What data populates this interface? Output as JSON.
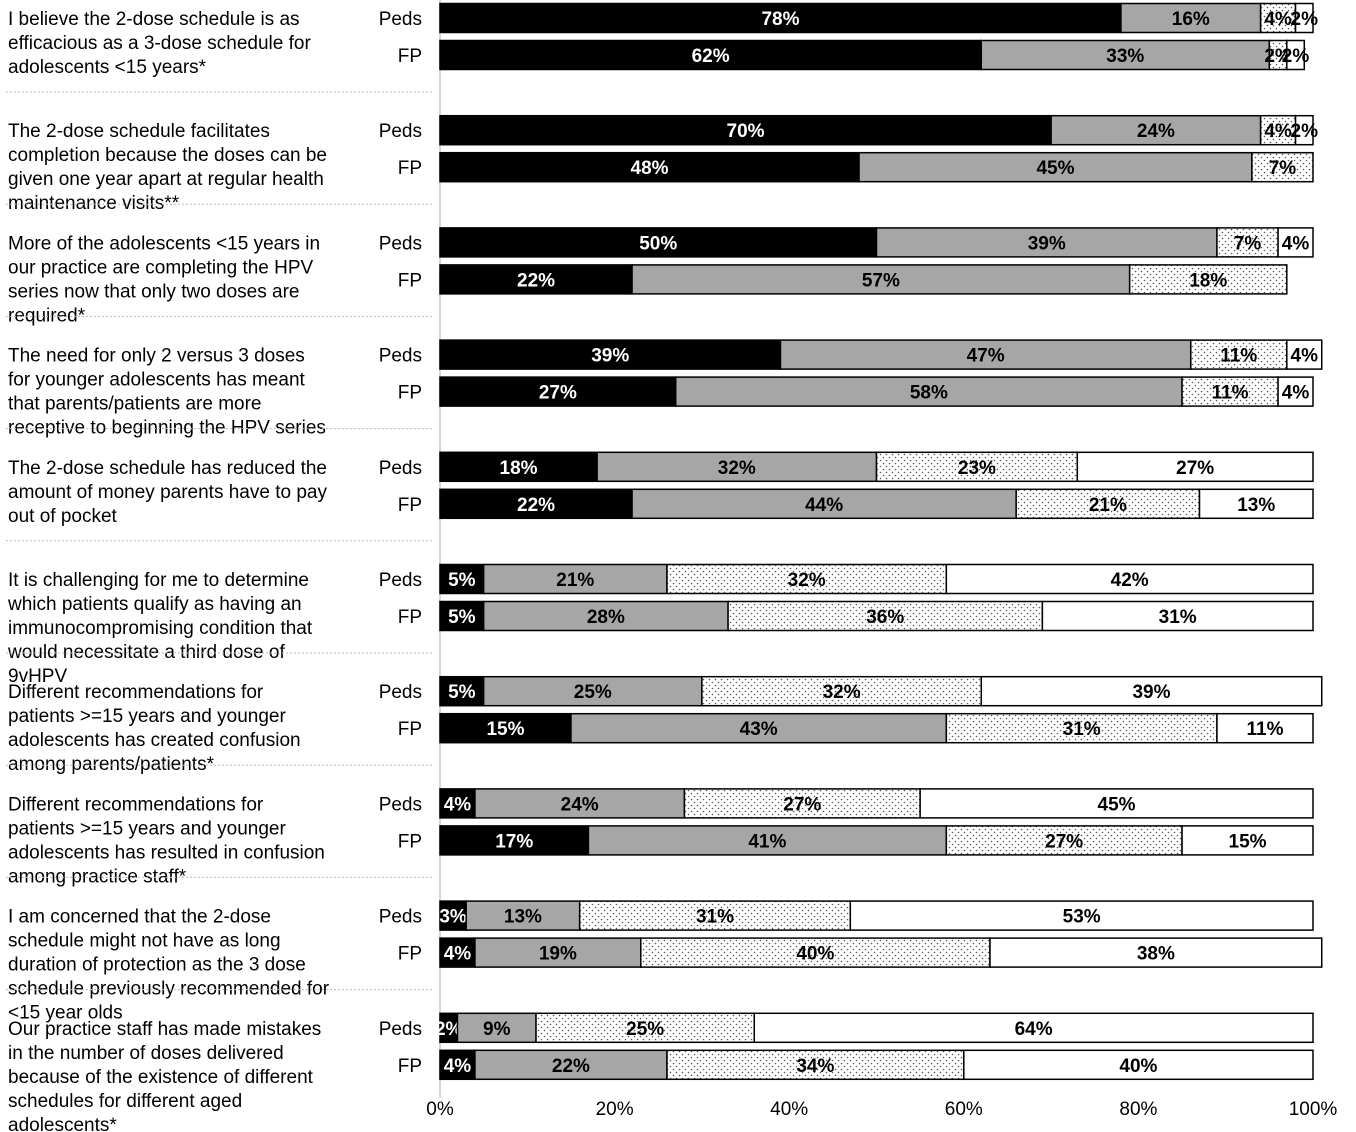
{
  "chart_data": {
    "type": "bar",
    "orientation": "horizontal",
    "stacked": true,
    "xlim": [
      0,
      100
    ],
    "x_ticks": [
      "0%",
      "20%",
      "40%",
      "60%",
      "80%",
      "100%"
    ],
    "legend": "none",
    "colors": [
      "#000000",
      "#a6a6a6",
      "dotted",
      "#ffffff"
    ],
    "groups": [
      "Peds",
      "FP"
    ],
    "statements": [
      {
        "lines": [
          "I believe the 2-dose schedule is as",
          "efficacious as a 3-dose schedule for",
          "adolescents <15 years*"
        ],
        "Peds": [
          78,
          16,
          4,
          2
        ],
        "FP": [
          62,
          33,
          2,
          2
        ]
      },
      {
        "lines": [
          "The 2-dose schedule facilitates",
          "completion because the doses can be",
          "given one year apart at regular health",
          "maintenance visits**"
        ],
        "Peds": [
          70,
          24,
          4,
          2
        ],
        "FP": [
          48,
          45,
          7,
          0
        ]
      },
      {
        "lines": [
          "More of the adolescents <15 years in",
          "our practice are completing the HPV",
          "series now that only two doses are",
          "required*"
        ],
        "Peds": [
          50,
          39,
          7,
          4
        ],
        "FP": [
          22,
          57,
          18,
          0
        ]
      },
      {
        "lines": [
          "The need for only 2 versus 3 doses",
          "for younger adolescents has meant",
          "that parents/patients are more",
          "receptive to beginning the HPV series"
        ],
        "Peds": [
          39,
          47,
          11,
          4
        ],
        "FP": [
          27,
          58,
          11,
          4
        ]
      },
      {
        "lines": [
          "The 2-dose schedule has reduced the",
          "amount of money parents have to pay",
          "out of pocket"
        ],
        "Peds": [
          18,
          32,
          23,
          27
        ],
        "FP": [
          22,
          44,
          21,
          13
        ]
      },
      {
        "lines": [
          "It is challenging for me to determine",
          "which patients qualify as having an",
          "immunocompromising condition that",
          "would necessitate a third dose of",
          "9vHPV"
        ],
        "Peds": [
          5,
          21,
          32,
          42
        ],
        "FP": [
          5,
          28,
          36,
          31
        ]
      },
      {
        "lines": [
          "Different recommendations for",
          "patients >=15 years and younger",
          "adolescents has created confusion",
          "among parents/patients*"
        ],
        "Peds": [
          5,
          25,
          32,
          39
        ],
        "FP": [
          15,
          43,
          31,
          11
        ]
      },
      {
        "lines": [
          "Different recommendations for",
          "patients >=15 years and younger",
          "adolescents has resulted in confusion",
          "among practice staff*"
        ],
        "Peds": [
          4,
          24,
          27,
          45
        ],
        "FP": [
          17,
          41,
          27,
          15
        ]
      },
      {
        "lines": [
          "I am concerned that the 2-dose",
          "schedule might not have as long",
          "duration of protection as the 3 dose",
          "schedule previously recommended for",
          "<15 year olds"
        ],
        "Peds": [
          3,
          13,
          31,
          53
        ],
        "FP": [
          4,
          19,
          40,
          38
        ]
      },
      {
        "lines": [
          "Our practice staff has made mistakes",
          "in the number of doses delivered",
          "because of the existence of different",
          "schedules for different aged",
          "adolescents*"
        ],
        "Peds": [
          2,
          9,
          25,
          64
        ],
        "FP": [
          4,
          22,
          34,
          40
        ]
      }
    ]
  }
}
